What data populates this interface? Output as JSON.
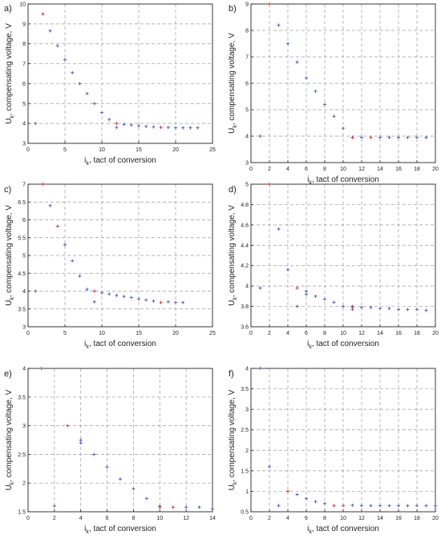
{
  "colors": {
    "blue": "#3c50dc",
    "red": "#e0201e",
    "grid": "#9a9a9a",
    "frame": "#222222"
  },
  "chart_data": [
    {
      "panel_label": "a)",
      "type": "scatter",
      "xlabel_main": "i",
      "xlabel_sub": "k",
      "xlabel_rest": ", tact of conversion",
      "ylabel_main": "U",
      "ylabel_sub": "k",
      "ylabel_rest": ", compensating voltage, V",
      "xlim": [
        0,
        25
      ],
      "ylim": [
        3,
        10
      ],
      "xticks": [
        0,
        5,
        10,
        15,
        20,
        25
      ],
      "yticks": [
        3,
        4,
        5,
        6,
        7,
        8,
        9,
        10
      ],
      "grid": true,
      "series": [
        {
          "color": "blue",
          "points": [
            [
              1,
              4.0
            ],
            [
              3,
              8.65
            ],
            [
              4,
              7.9
            ],
            [
              5,
              7.2
            ],
            [
              6,
              6.55
            ],
            [
              7,
              6.0
            ],
            [
              8,
              5.5
            ],
            [
              9,
              5.0
            ],
            [
              10,
              4.55
            ],
            [
              11,
              4.2
            ],
            [
              12,
              3.8
            ],
            [
              13,
              3.95
            ],
            [
              14,
              3.92
            ],
            [
              15,
              3.88
            ],
            [
              16,
              3.85
            ],
            [
              17,
              3.82
            ],
            [
              19,
              3.8
            ],
            [
              20,
              3.78
            ],
            [
              21,
              3.78
            ],
            [
              22,
              3.78
            ],
            [
              23,
              3.78
            ]
          ]
        },
        {
          "color": "red",
          "points": [
            [
              2,
              9.5
            ],
            [
              12,
              4.0
            ],
            [
              18,
              3.8
            ]
          ]
        }
      ]
    },
    {
      "panel_label": "b)",
      "type": "scatter",
      "xlabel_main": "i",
      "xlabel_sub": "k",
      "xlabel_rest": ", tact of conversion",
      "ylabel_main": "U",
      "ylabel_sub": "k",
      "ylabel_rest": ", compensating voltage, V",
      "xlim": [
        0,
        20
      ],
      "ylim": [
        3,
        9
      ],
      "xticks": [
        0,
        2,
        4,
        6,
        8,
        10,
        12,
        14,
        16,
        18,
        20
      ],
      "yticks": [
        3,
        4,
        5,
        6,
        7,
        8,
        9
      ],
      "grid": true,
      "series": [
        {
          "color": "blue",
          "points": [
            [
              1,
              4.0
            ],
            [
              3,
              8.2
            ],
            [
              4,
              7.5
            ],
            [
              5,
              6.8
            ],
            [
              6,
              6.2
            ],
            [
              7,
              5.7
            ],
            [
              8,
              5.2
            ],
            [
              9,
              4.75
            ],
            [
              10,
              4.3
            ],
            [
              11,
              3.95
            ],
            [
              12,
              3.95
            ],
            [
              14,
              3.95
            ],
            [
              15,
              3.95
            ],
            [
              16,
              3.95
            ],
            [
              17,
              3.95
            ],
            [
              18,
              3.95
            ],
            [
              19,
              3.95
            ]
          ]
        },
        {
          "color": "red",
          "points": [
            [
              2,
              9.0
            ],
            [
              11,
              3.95
            ],
            [
              13,
              3.95
            ]
          ]
        }
      ]
    },
    {
      "panel_label": "c)",
      "type": "scatter",
      "xlabel_main": "i",
      "xlabel_sub": "k",
      "xlabel_rest": ", tact of conversion",
      "ylabel_main": "U",
      "ylabel_sub": "k",
      "ylabel_rest": ", compensating voltage, V",
      "xlim": [
        0,
        25
      ],
      "ylim": [
        3,
        7
      ],
      "xticks": [
        0,
        5,
        10,
        15,
        20,
        25
      ],
      "yticks": [
        3,
        3.5,
        4,
        4.5,
        5,
        5.5,
        6,
        6.5,
        7
      ],
      "grid": true,
      "series": [
        {
          "color": "blue",
          "points": [
            [
              1,
              4.0
            ],
            [
              3,
              6.4
            ],
            [
              5,
              5.3
            ],
            [
              6,
              4.85
            ],
            [
              7,
              4.42
            ],
            [
              8,
              4.05
            ],
            [
              9,
              3.7
            ],
            [
              10,
              3.95
            ],
            [
              11,
              3.92
            ],
            [
              12,
              3.88
            ],
            [
              13,
              3.85
            ],
            [
              14,
              3.82
            ],
            [
              15,
              3.78
            ],
            [
              16,
              3.75
            ],
            [
              17,
              3.72
            ],
            [
              19,
              3.7
            ],
            [
              20,
              3.68
            ],
            [
              21,
              3.68
            ]
          ]
        },
        {
          "color": "red",
          "points": [
            [
              2,
              7.0
            ],
            [
              4,
              5.82
            ],
            [
              9,
              4.0
            ],
            [
              18,
              3.68
            ]
          ]
        }
      ]
    },
    {
      "panel_label": "d)",
      "type": "scatter",
      "xlabel_main": "i",
      "xlabel_sub": "k",
      "xlabel_rest": ", tact of conversion",
      "ylabel_main": "U",
      "ylabel_sub": "k",
      "ylabel_rest": ", compensating voltage, V",
      "xlim": [
        0,
        20
      ],
      "ylim": [
        3.6,
        5
      ],
      "xticks": [
        0,
        2,
        4,
        6,
        8,
        10,
        12,
        14,
        16,
        18,
        20
      ],
      "yticks": [
        3.6,
        3.8,
        4,
        4.2,
        4.4,
        4.6,
        4.8,
        5
      ],
      "grid": true,
      "series": [
        {
          "color": "blue",
          "points": [
            [
              1,
              3.98
            ],
            [
              3,
              4.56
            ],
            [
              4,
              4.16
            ],
            [
              5,
              3.8
            ],
            [
              6,
              3.95
            ],
            [
              6,
              3.92
            ],
            [
              7,
              3.9
            ],
            [
              8,
              3.87
            ],
            [
              9,
              3.84
            ],
            [
              10,
              3.8
            ],
            [
              11,
              3.8
            ],
            [
              11,
              3.77
            ],
            [
              12,
              3.79
            ],
            [
              13,
              3.79
            ],
            [
              14,
              3.78
            ],
            [
              15,
              3.78
            ],
            [
              16,
              3.77
            ],
            [
              17,
              3.77
            ],
            [
              18,
              3.77
            ],
            [
              19,
              3.76
            ]
          ]
        },
        {
          "color": "red",
          "points": [
            [
              2,
              5.0
            ],
            [
              5,
              3.98
            ],
            [
              11,
              3.79
            ]
          ]
        }
      ]
    },
    {
      "panel_label": "e)",
      "type": "scatter",
      "xlabel_main": "i",
      "xlabel_sub": "k",
      "xlabel_rest": ", tact of conversion",
      "ylabel_main": "U",
      "ylabel_sub": "k",
      "ylabel_rest": ", compensating voltage, V",
      "xlim": [
        0,
        14
      ],
      "ylim": [
        1.5,
        4
      ],
      "xticks": [
        0,
        2,
        4,
        6,
        8,
        10,
        12,
        14
      ],
      "yticks": [
        1.5,
        2,
        2.5,
        3,
        3.5,
        4
      ],
      "grid": true,
      "series": [
        {
          "color": "blue",
          "points": [
            [
              1,
              4.0
            ],
            [
              2,
              1.6
            ],
            [
              4,
              2.75
            ],
            [
              4,
              2.7
            ],
            [
              5,
              2.5
            ],
            [
              6,
              2.28
            ],
            [
              7,
              2.07
            ],
            [
              8,
              1.9
            ],
            [
              9,
              1.73
            ],
            [
              10,
              1.6
            ],
            [
              12,
              1.58
            ],
            [
              13,
              1.58
            ],
            [
              14,
              1.55
            ]
          ]
        },
        {
          "color": "red",
          "points": [
            [
              3,
              3.0
            ],
            [
              10,
              1.58
            ],
            [
              11,
              1.58
            ]
          ]
        }
      ]
    },
    {
      "panel_label": "f)",
      "type": "scatter",
      "xlabel_main": "i",
      "xlabel_sub": "k",
      "xlabel_rest": ", tact of conversion",
      "ylabel_main": "U",
      "ylabel_sub": "k",
      "ylabel_rest": ", compensating voltage, V",
      "xlim": [
        0,
        20
      ],
      "ylim": [
        0.5,
        4
      ],
      "xticks": [
        0,
        2,
        4,
        6,
        8,
        10,
        12,
        14,
        16,
        18,
        20
      ],
      "yticks": [
        0.5,
        1,
        1.5,
        2,
        2.5,
        3,
        3.5,
        4
      ],
      "grid": true,
      "series": [
        {
          "color": "blue",
          "points": [
            [
              1,
              4.0
            ],
            [
              2,
              1.6
            ],
            [
              3,
              0.65
            ],
            [
              5,
              0.92
            ],
            [
              6,
              0.82
            ],
            [
              7,
              0.75
            ],
            [
              8,
              0.7
            ],
            [
              11,
              0.66
            ],
            [
              12,
              0.65
            ],
            [
              13,
              0.65
            ],
            [
              14,
              0.65
            ],
            [
              15,
              0.65
            ],
            [
              16,
              0.65
            ],
            [
              17,
              0.65
            ],
            [
              18,
              0.65
            ],
            [
              19,
              0.65
            ],
            [
              20,
              0.65
            ]
          ]
        },
        {
          "color": "red",
          "points": [
            [
              4,
              1.0
            ],
            [
              9,
              0.65
            ],
            [
              10,
              0.65
            ]
          ]
        }
      ]
    }
  ]
}
